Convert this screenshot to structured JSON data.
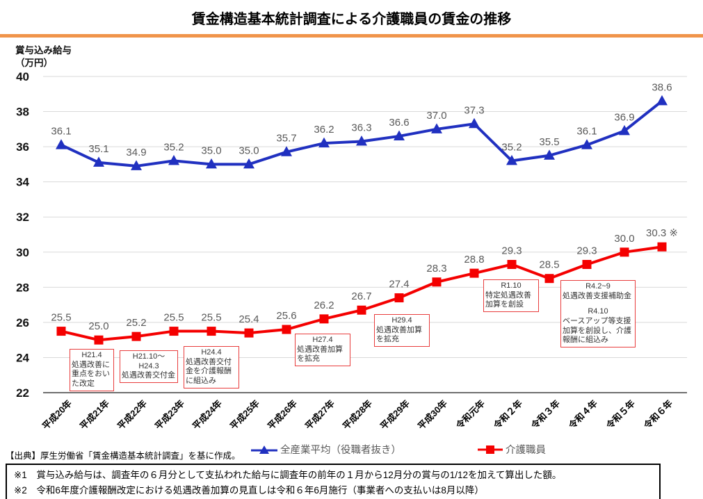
{
  "title": "賃金構造基本統計調査による介護職員の賃金の推移",
  "accent_color": "#F0944A",
  "y_axis_unit": {
    "line1": "賞与込み給与",
    "line2": "（万円）"
  },
  "source": "【出典】厚生労働省「賃金構造基本統計調査」を基に作成。",
  "notes": [
    "※1　賞与込み給与は、調査年の６月分として支払われた給与に調査年の前年の１月から12月分の賞与の1/12を加えて算出した額。",
    "※2　令和6年度介護報酬改定における処遇改善加算の見直しは令和６年6月施行（事業者への支払いは8月以降）"
  ],
  "chart_data": {
    "type": "line",
    "title": "賃金構造基本統計調査による介護職員の賃金の推移",
    "ylabel": "賞与込み給与（万円）",
    "ylim": [
      22,
      40
    ],
    "ytick_step": 2,
    "grid": true,
    "grid_color": "#D9D9D9",
    "axis_color": "#3F3F3F",
    "label_color": "#595959",
    "legend_position": "bottom",
    "categories": [
      "平成20年",
      "平成21年",
      "平成22年",
      "平成23年",
      "平成24年",
      "平成25年",
      "平成26年",
      "平成27年",
      "平成28年",
      "平成29年",
      "平成30年",
      "令和元年",
      "令和２年",
      "令和３年",
      "令和４年",
      "令和５年",
      "令和６年"
    ],
    "series": [
      {
        "name": "全産業平均（役職者抜き）",
        "color": "#2030C0",
        "marker": "triangle",
        "values": [
          36.1,
          35.1,
          34.9,
          35.2,
          35.0,
          35.0,
          35.7,
          36.2,
          36.3,
          36.6,
          37.0,
          37.3,
          35.2,
          35.5,
          36.1,
          36.9,
          38.6
        ]
      },
      {
        "name": "介護職員",
        "color": "#F40000",
        "marker": "square",
        "values": [
          25.5,
          25.0,
          25.2,
          25.5,
          25.5,
          25.4,
          25.6,
          26.2,
          26.7,
          27.4,
          28.3,
          28.8,
          29.3,
          28.5,
          29.3,
          30.0,
          30.3
        ],
        "last_suffix": " ※"
      }
    ],
    "annotations": [
      {
        "lines": [
          "H21.4",
          "処遇改善に",
          "重点をおい",
          "た改定"
        ]
      },
      {
        "lines": [
          "H21.10～",
          "H24.3",
          "処遇改善交付金"
        ]
      },
      {
        "lines": [
          "H24.4",
          "処遇改善交付",
          "金を介護報酬",
          "に組込み"
        ]
      },
      {
        "lines": [
          "H27.4",
          "処遇改善加算",
          "を拡充"
        ]
      },
      {
        "lines": [
          "H29.4",
          "処遇改善加算",
          "を拡充"
        ]
      },
      {
        "lines": [
          "R1.10",
          "特定処遇改善",
          "加算を創設"
        ]
      },
      {
        "lines": [
          "R4.2~9",
          "処遇改善支援補助金",
          "",
          "R4.10",
          "ベースアップ等支援",
          "加算を創設し、介護",
          "報酬に組込み"
        ]
      }
    ]
  }
}
